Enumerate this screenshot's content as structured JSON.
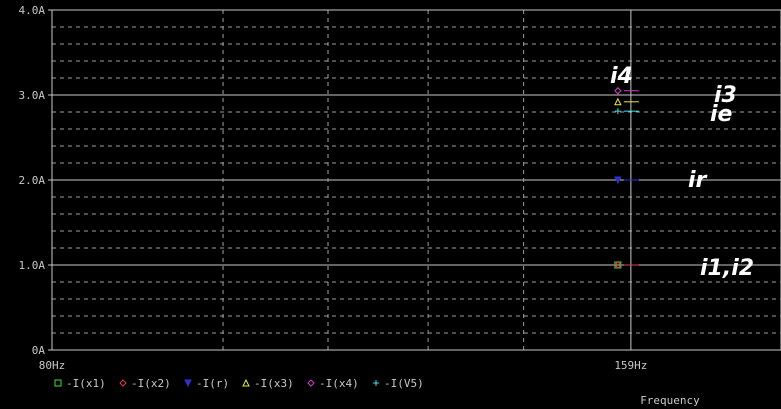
{
  "chart_data": {
    "type": "line",
    "xlabel": "Frequency",
    "ylabel": "",
    "x_scale": "log",
    "xlim": [
      80,
      190
    ],
    "ylim": [
      0,
      4.0
    ],
    "x_ticks": [
      {
        "value": 80,
        "label": "80Hz"
      },
      {
        "value": 159,
        "label": "159Hz"
      }
    ],
    "y_ticks": [
      {
        "value": 0,
        "label": "0A"
      },
      {
        "value": 1,
        "label": "1.0A"
      },
      {
        "value": 2,
        "label": "2.0A"
      },
      {
        "value": 3,
        "label": "3.0A"
      },
      {
        "value": 4,
        "label": "4.0A"
      }
    ],
    "grid": true,
    "legend_placement": "bottom",
    "series": [
      {
        "name": "-I(x1)",
        "color": "#40e040",
        "marker": "square",
        "x": [
          159
        ],
        "y": [
          1.0
        ]
      },
      {
        "name": "-I(x2)",
        "color": "#e04040",
        "marker": "diamond",
        "x": [
          159
        ],
        "y": [
          1.0
        ]
      },
      {
        "name": "-I(r)",
        "color": "#3030d0",
        "marker": "triangle-down",
        "x": [
          159
        ],
        "y": [
          2.0
        ]
      },
      {
        "name": "-I(x3)",
        "color": "#e8e840",
        "marker": "triangle-up",
        "x": [
          159
        ],
        "y": [
          2.92
        ]
      },
      {
        "name": "-I(x4)",
        "color": "#d040d0",
        "marker": "diamond",
        "x": [
          159
        ],
        "y": [
          3.05
        ]
      },
      {
        "name": "-I(V5)",
        "color": "#40e0e0",
        "marker": "plus",
        "x": [
          159
        ],
        "y": [
          2.81
        ]
      }
    ],
    "annotations": [
      {
        "text": "i4",
        "value": 3.05
      },
      {
        "text": "i3",
        "value": 2.92
      },
      {
        "text": "ie",
        "value": 2.81
      },
      {
        "text": "ir",
        "value": 2.0
      },
      {
        "text": "i1,i2",
        "value": 1.0
      }
    ]
  }
}
